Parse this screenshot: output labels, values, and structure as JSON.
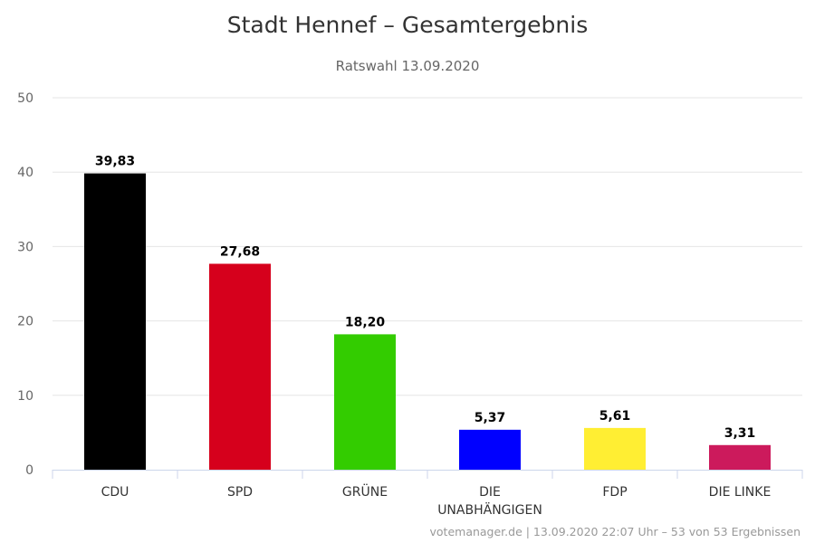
{
  "chart_data": {
    "type": "bar",
    "title": "Stadt Hennef – Gesamtergebnis",
    "subtitle": "Ratswahl 13.09.2020",
    "categories": [
      [
        "CDU"
      ],
      [
        "SPD"
      ],
      [
        "GRÜNE"
      ],
      [
        "DIE",
        "UNABHÄNGIGEN"
      ],
      [
        "FDP"
      ],
      [
        "DIE LINKE"
      ]
    ],
    "values": [
      39.83,
      27.68,
      18.2,
      5.37,
      5.61,
      3.31
    ],
    "value_labels": [
      "39,83",
      "27,68",
      "18,20",
      "5,37",
      "5,61",
      "3,31"
    ],
    "colors": [
      "#000000",
      "#d6001c",
      "#33cc00",
      "#0000ff",
      "#ffee33",
      "#cc1a5c"
    ],
    "ylim": [
      0,
      50
    ],
    "yticks": [
      0,
      10,
      20,
      30,
      40,
      50
    ],
    "grid": true,
    "legend": false,
    "credits": "votemanager.de | 13.09.2020 22:07 Uhr – 53 von 53 Ergebnissen"
  }
}
